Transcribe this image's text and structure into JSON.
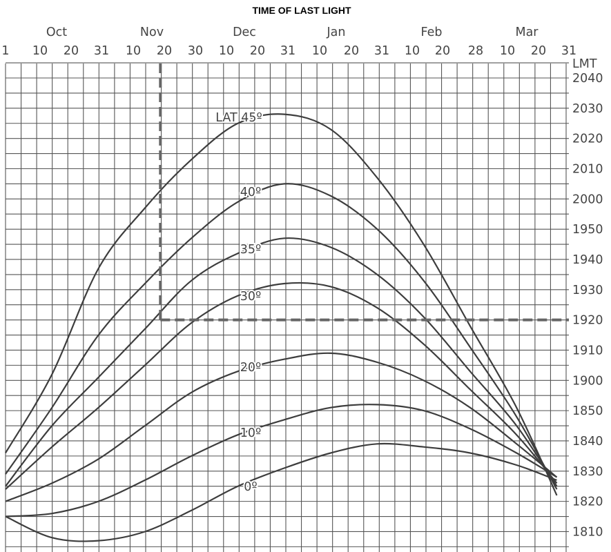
{
  "chart_data": {
    "type": "line",
    "title": "TIME OF LAST LIGHT",
    "y_unit": "LMT",
    "month_labels": [
      "Oct",
      "Nov",
      "Dec",
      "Jan",
      "Feb",
      "Mar"
    ],
    "day_ticks": [
      "1",
      "10",
      "20",
      "31",
      "10",
      "20",
      "30",
      "10",
      "20",
      "31",
      "10",
      "20",
      "31",
      "10",
      "20",
      "28",
      "10",
      "20",
      "31"
    ],
    "time_ticks": [
      "2040",
      "2030",
      "2020",
      "2010",
      "2000",
      "1950",
      "1940",
      "1930",
      "1920",
      "1910",
      "1900",
      "1850",
      "1840",
      "1830",
      "1820",
      "1810"
    ],
    "x_range": [
      "Oct 1",
      "Mar 31"
    ],
    "y_range": [
      "1805",
      "2045"
    ],
    "grid": true,
    "series": [
      {
        "name": "LAT 45º",
        "points": [
          [
            0,
            "1836"
          ],
          [
            15,
            "1902"
          ],
          [
            30,
            "1937"
          ],
          [
            45,
            "1957"
          ],
          [
            60,
            "2013"
          ],
          [
            75,
            "2025"
          ],
          [
            90,
            "2028"
          ],
          [
            105,
            "2023"
          ],
          [
            120,
            "2007"
          ],
          [
            135,
            "1945"
          ],
          [
            150,
            "1918"
          ],
          [
            165,
            "1851"
          ],
          [
            178,
            "1822"
          ]
        ]
      },
      {
        "name": "40º",
        "points": [
          [
            0,
            "1829"
          ],
          [
            15,
            "1851"
          ],
          [
            30,
            "1915"
          ],
          [
            45,
            "1932"
          ],
          [
            60,
            "1947"
          ],
          [
            75,
            "1959"
          ],
          [
            90,
            "2005"
          ],
          [
            105,
            "2001"
          ],
          [
            120,
            "1950"
          ],
          [
            135,
            "1933"
          ],
          [
            150,
            "1911"
          ],
          [
            165,
            "1848"
          ],
          [
            178,
            "1824"
          ]
        ]
      },
      {
        "name": "35º",
        "points": [
          [
            0,
            "1825"
          ],
          [
            15,
            "1845"
          ],
          [
            30,
            "1901"
          ],
          [
            45,
            "1917"
          ],
          [
            60,
            "1933"
          ],
          [
            75,
            "1942"
          ],
          [
            90,
            "1947"
          ],
          [
            105,
            "1944"
          ],
          [
            120,
            "1935"
          ],
          [
            135,
            "1921"
          ],
          [
            150,
            "1903"
          ],
          [
            165,
            "1845"
          ],
          [
            178,
            "1825"
          ]
        ]
      },
      {
        "name": "30º",
        "points": [
          [
            0,
            "1824"
          ],
          [
            15,
            "1838"
          ],
          [
            30,
            "1851"
          ],
          [
            45,
            "1905"
          ],
          [
            60,
            "1919"
          ],
          [
            75,
            "1928"
          ],
          [
            90,
            "1932"
          ],
          [
            105,
            "1931"
          ],
          [
            120,
            "1924"
          ],
          [
            135,
            "1912"
          ],
          [
            150,
            "1857"
          ],
          [
            165,
            "1842"
          ],
          [
            178,
            "1826"
          ]
        ]
      },
      {
        "name": "20º",
        "points": [
          [
            0,
            "1820"
          ],
          [
            15,
            "1826"
          ],
          [
            30,
            "1834"
          ],
          [
            45,
            "1845"
          ],
          [
            60,
            "1856"
          ],
          [
            75,
            "1903"
          ],
          [
            90,
            "1907"
          ],
          [
            105,
            "1909"
          ],
          [
            120,
            "1906"
          ],
          [
            135,
            "1900"
          ],
          [
            150,
            "1851"
          ],
          [
            165,
            "1839"
          ],
          [
            178,
            "1828"
          ]
        ]
      },
      {
        "name": "10º",
        "points": [
          [
            0,
            "1815"
          ],
          [
            15,
            "1816"
          ],
          [
            30,
            "1820"
          ],
          [
            45,
            "1827"
          ],
          [
            60,
            "1835"
          ],
          [
            75,
            "1842"
          ],
          [
            90,
            "1847"
          ],
          [
            105,
            "1851"
          ],
          [
            120,
            "1852"
          ],
          [
            135,
            "1850"
          ],
          [
            150,
            "1844"
          ],
          [
            165,
            "1836"
          ],
          [
            178,
            "1828"
          ]
        ]
      },
      {
        "name": "0º",
        "points": [
          [
            0,
            "1815"
          ],
          [
            15,
            "1808"
          ],
          [
            30,
            "1807"
          ],
          [
            45,
            "1810"
          ],
          [
            60,
            "1817"
          ],
          [
            75,
            "1825"
          ],
          [
            90,
            "1831"
          ],
          [
            105,
            "1836"
          ],
          [
            120,
            "1839"
          ],
          [
            135,
            "1838"
          ],
          [
            150,
            "1836"
          ],
          [
            165,
            "1832"
          ],
          [
            178,
            "1827"
          ]
        ]
      }
    ],
    "reference_lines": [
      {
        "type": "vertical",
        "x": 50,
        "label_x": "Nov 20"
      },
      {
        "type": "horizontal",
        "y": "1920",
        "label_y": "1920"
      }
    ]
  }
}
